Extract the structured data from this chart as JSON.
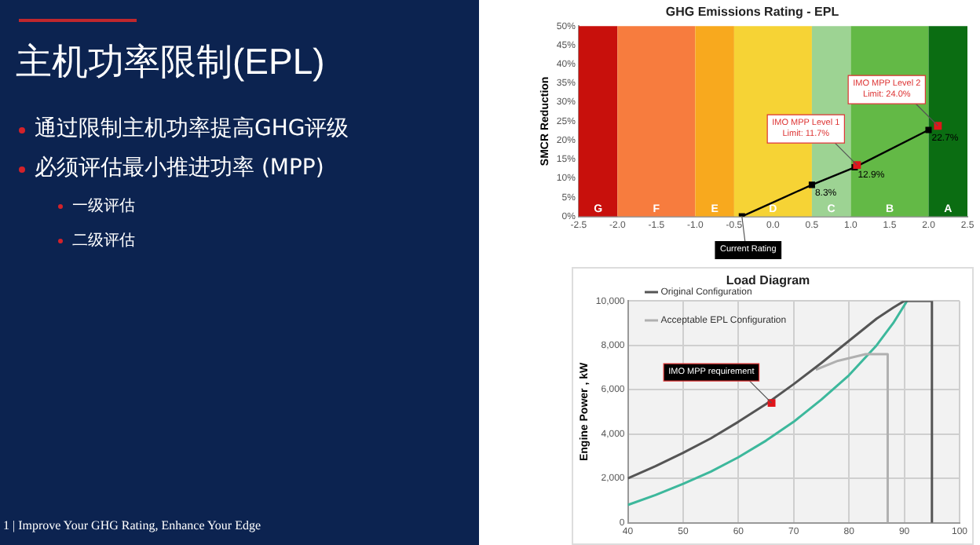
{
  "chart_data": [
    {
      "type": "other",
      "title": "主机功率限制(EPL)",
      "annotations": [
        "通过限制主机功率提高GHG评级",
        "必须评估最小推进功率 (MPP)",
        "一级评估",
        "二级评估",
        "1 | Improve Your GHG Rating, Enhance Your Edge"
      ]
    },
    {
      "type": "line",
      "title": "GHG Emissions Rating - EPL",
      "ylabel": "SMCR Reduction",
      "xlim": [
        -2.5,
        2.5
      ],
      "xticks": [
        -2.5,
        {
          "value": -2,
          "label": "-2.0"
        },
        -1.5,
        {
          "value": -1,
          "label": "-1.0"
        },
        -0.5,
        {
          "value": 0,
          "label": "0.0"
        },
        0.5,
        {
          "value": 1,
          "label": "1.0"
        },
        1.5,
        {
          "value": 2,
          "label": "2.0"
        },
        2.5
      ],
      "ylim": [
        0,
        50
      ],
      "yticks": [
        {
          "value": 0,
          "label": "0%"
        },
        {
          "value": 5,
          "label": "5%"
        },
        {
          "value": 10,
          "label": "10%"
        },
        {
          "value": 15,
          "label": "15%"
        },
        {
          "value": 20,
          "label": "20%"
        },
        {
          "value": 25,
          "label": "25%"
        },
        {
          "value": 30,
          "label": "30%"
        },
        {
          "value": 35,
          "label": "35%"
        },
        {
          "value": 40,
          "label": "40%"
        },
        {
          "value": 45,
          "label": "45%"
        },
        {
          "value": 50,
          "label": "50%"
        }
      ],
      "marker": "square",
      "legend": false,
      "grid": false,
      "bands": [
        {
          "axis": "x",
          "from": -2.5,
          "to": -2,
          "label": "G",
          "color": "#c8100c"
        },
        {
          "axis": "x",
          "from": -2,
          "to": -1,
          "label": "F",
          "color": "#f77c3e"
        },
        {
          "axis": "x",
          "from": -1,
          "to": -0.5,
          "label": "E",
          "color": "#f8a91e"
        },
        {
          "axis": "x",
          "from": -0.5,
          "to": 0.5,
          "label": "D",
          "color": "#f6d335"
        },
        {
          "axis": "x",
          "from": 0.5,
          "to": 1,
          "label": "C",
          "color": "#9dd393"
        },
        {
          "axis": "x",
          "from": 1,
          "to": 2,
          "label": "B",
          "color": "#63b946"
        },
        {
          "axis": "x",
          "from": 2,
          "to": 2.5,
          "label": "A",
          "color": "#0b6d12"
        }
      ],
      "series": [
        {
          "type": "line",
          "color": "#000000",
          "x": [
            -0.4,
            0.5,
            1.05,
            2.0
          ],
          "values": [
            0,
            8.3,
            12.9,
            22.7
          ],
          "value_labels": [
            null,
            "8.3%",
            "12.9%",
            "22.7%"
          ]
        },
        {
          "type": "scatter",
          "color": "#e0161b",
          "x": [
            1.08,
            2.12
          ],
          "values": [
            13.5,
            23.8
          ]
        }
      ],
      "annotations": [
        {
          "text": "IMO MPP Level 1\nLimit: 11.7%",
          "x": 1.08,
          "y": 13.5
        },
        {
          "text": "IMO MPP Level 2\nLimit: 24.0%",
          "x": 2.12,
          "y": 23.8
        },
        {
          "text": "Current Rating",
          "x": -0.4,
          "y": 0
        }
      ]
    },
    {
      "type": "line",
      "title": "Load Diagram",
      "ylabel": "Engine Power , kW",
      "xlim": [
        40,
        100
      ],
      "xticks": [
        40,
        50,
        60,
        70,
        80,
        90,
        100
      ],
      "ylim": [
        0,
        10000
      ],
      "yticks": [
        0,
        {
          "value": 2000,
          "label": "2,000"
        },
        {
          "value": 4000,
          "label": "4,000"
        },
        {
          "value": 6000,
          "label": "6,000"
        },
        {
          "value": 8000,
          "label": "8,000"
        },
        {
          "value": 10000,
          "label": "10,000"
        }
      ],
      "marker": "none",
      "legend": "top left",
      "grid": true,
      "series": [
        {
          "name": "Original Configuration",
          "color": "#555555",
          "x": [
            40,
            45,
            50,
            55,
            60,
            65,
            70,
            75,
            80,
            85,
            88,
            90,
            95,
            95
          ],
          "values": [
            2000,
            2550,
            3150,
            3800,
            4550,
            5350,
            6250,
            7200,
            8200,
            9200,
            9700,
            10000,
            10000,
            0
          ]
        },
        {
          "name": "Acceptable EPL Configuration",
          "color": "#b0b0b0",
          "x": [
            74,
            78,
            83,
            87,
            87
          ],
          "values": [
            6900,
            7300,
            7600,
            7600,
            0
          ]
        },
        {
          "type": "line",
          "color": "#3db89c",
          "x": [
            40,
            45,
            50,
            55,
            60,
            65,
            70,
            75,
            80,
            85,
            88,
            90.5
          ],
          "values": [
            800,
            1250,
            1750,
            2300,
            2950,
            3700,
            4550,
            5550,
            6650,
            8000,
            9000,
            10000
          ]
        },
        {
          "type": "scatter",
          "color": "#e0161b",
          "marker": "square",
          "x": [
            66
          ],
          "values": [
            5400
          ]
        }
      ],
      "annotations": [
        {
          "text": "IMO MPP requirement",
          "x": 66,
          "y": 5400
        }
      ]
    }
  ]
}
